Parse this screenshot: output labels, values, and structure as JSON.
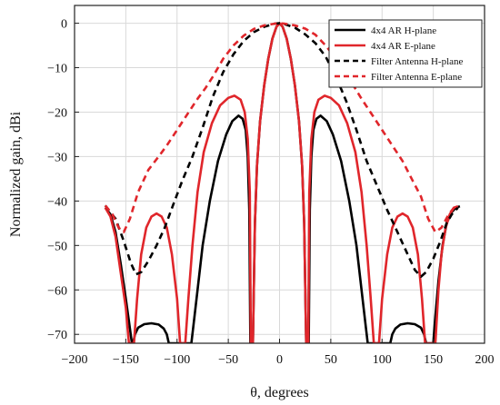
{
  "chart_data": {
    "type": "line",
    "title": "",
    "xlabel": "θ, degrees",
    "ylabel": "Normalized gain, dBi",
    "xlim": [
      -200,
      200
    ],
    "ylim": [
      -72,
      4
    ],
    "xticks": [
      -200,
      -150,
      -100,
      -50,
      0,
      50,
      100,
      150,
      200
    ],
    "yticks": [
      0,
      -10,
      -20,
      -30,
      -40,
      -50,
      -60,
      -70
    ],
    "grid": true,
    "legend_position": "top-right",
    "series": [
      {
        "name": "4x4 AR H-plane",
        "color": "#000000",
        "style": "solid",
        "points": [
          [
            -170,
            -41.5
          ],
          [
            -165,
            -43
          ],
          [
            -160,
            -47
          ],
          [
            -155,
            -54
          ],
          [
            -150,
            -62
          ],
          [
            -147,
            -67
          ],
          [
            -144,
            -72
          ],
          [
            -145,
            -72
          ],
          [
            -143,
            -72
          ],
          [
            -141,
            -70
          ],
          [
            -138,
            -68.5
          ],
          [
            -132,
            -67.7
          ],
          [
            -125,
            -67.5
          ],
          [
            -118,
            -67.8
          ],
          [
            -113,
            -68.7
          ],
          [
            -110,
            -70
          ],
          [
            -108,
            -72
          ],
          [
            -86,
            -72
          ],
          [
            -84,
            -68
          ],
          [
            -80,
            -60
          ],
          [
            -75,
            -50
          ],
          [
            -68,
            -40
          ],
          [
            -60,
            -31
          ],
          [
            -52,
            -25
          ],
          [
            -46,
            -22
          ],
          [
            -40,
            -20.8
          ],
          [
            -36,
            -21.5
          ],
          [
            -33,
            -24
          ],
          [
            -31,
            -30
          ],
          [
            -29.5,
            -42
          ],
          [
            -28.5,
            -72
          ],
          [
            -26,
            -72
          ],
          [
            -24,
            -45
          ],
          [
            -22,
            -32
          ],
          [
            -19,
            -22
          ],
          [
            -15,
            -14
          ],
          [
            -11,
            -8
          ],
          [
            -7,
            -3.5
          ],
          [
            -3,
            -0.8
          ],
          [
            0,
            0
          ],
          [
            3,
            -0.8
          ],
          [
            7,
            -3.5
          ],
          [
            11,
            -8
          ],
          [
            15,
            -14
          ],
          [
            19,
            -22
          ],
          [
            22,
            -32
          ],
          [
            24,
            -45
          ],
          [
            26,
            -72
          ],
          [
            28.5,
            -72
          ],
          [
            29.5,
            -42
          ],
          [
            31,
            -30
          ],
          [
            33,
            -24
          ],
          [
            36,
            -21.5
          ],
          [
            40,
            -20.8
          ],
          [
            46,
            -22
          ],
          [
            52,
            -25
          ],
          [
            60,
            -31
          ],
          [
            68,
            -40
          ],
          [
            75,
            -50
          ],
          [
            80,
            -60
          ],
          [
            84,
            -68
          ],
          [
            86,
            -72
          ],
          [
            108,
            -72
          ],
          [
            110,
            -70
          ],
          [
            113,
            -68.7
          ],
          [
            118,
            -67.8
          ],
          [
            125,
            -67.5
          ],
          [
            132,
            -67.7
          ],
          [
            138,
            -68.5
          ],
          [
            141,
            -70
          ],
          [
            143,
            -72
          ],
          [
            150,
            -72
          ],
          [
            152,
            -66
          ],
          [
            155,
            -58
          ],
          [
            159,
            -50
          ],
          [
            163,
            -45
          ],
          [
            168,
            -42.5
          ],
          [
            172,
            -41.5
          ],
          [
            176,
            -41.2
          ]
        ]
      },
      {
        "name": "4x4 AR E-plane",
        "color": "#e0262b",
        "style": "solid",
        "points": [
          [
            -170,
            -41.5
          ],
          [
            -165,
            -43.5
          ],
          [
            -160,
            -48
          ],
          [
            -155,
            -56
          ],
          [
            -150,
            -64
          ],
          [
            -147,
            -72
          ],
          [
            -142,
            -72
          ],
          [
            -139,
            -62
          ],
          [
            -135,
            -52
          ],
          [
            -130,
            -46
          ],
          [
            -125,
            -43.5
          ],
          [
            -120,
            -42.8
          ],
          [
            -115,
            -43.5
          ],
          [
            -110,
            -46
          ],
          [
            -105,
            -52
          ],
          [
            -100,
            -62
          ],
          [
            -97,
            -72
          ],
          [
            -92,
            -72
          ],
          [
            -89,
            -62
          ],
          [
            -85,
            -50
          ],
          [
            -80,
            -38
          ],
          [
            -74,
            -29
          ],
          [
            -66,
            -22.5
          ],
          [
            -58,
            -18.5
          ],
          [
            -50,
            -16.8
          ],
          [
            -44,
            -16.3
          ],
          [
            -38,
            -17.2
          ],
          [
            -34,
            -20
          ],
          [
            -31,
            -26
          ],
          [
            -29,
            -38
          ],
          [
            -28,
            -72
          ],
          [
            -26,
            -72
          ],
          [
            -24,
            -45
          ],
          [
            -22,
            -32
          ],
          [
            -19,
            -22
          ],
          [
            -15,
            -14
          ],
          [
            -11,
            -8
          ],
          [
            -7,
            -3.5
          ],
          [
            -3,
            -0.8
          ],
          [
            0,
            0
          ],
          [
            3,
            -0.8
          ],
          [
            7,
            -3.5
          ],
          [
            11,
            -8
          ],
          [
            15,
            -14
          ],
          [
            19,
            -22
          ],
          [
            22,
            -32
          ],
          [
            24,
            -45
          ],
          [
            26,
            -72
          ],
          [
            28,
            -72
          ],
          [
            29,
            -38
          ],
          [
            31,
            -26
          ],
          [
            34,
            -20
          ],
          [
            38,
            -17.2
          ],
          [
            44,
            -16.3
          ],
          [
            50,
            -16.8
          ],
          [
            58,
            -18.5
          ],
          [
            66,
            -22.5
          ],
          [
            74,
            -29
          ],
          [
            80,
            -38
          ],
          [
            85,
            -50
          ],
          [
            89,
            -62
          ],
          [
            92,
            -72
          ],
          [
            97,
            -72
          ],
          [
            100,
            -62
          ],
          [
            105,
            -52
          ],
          [
            110,
            -46
          ],
          [
            115,
            -43.5
          ],
          [
            120,
            -42.8
          ],
          [
            125,
            -43.5
          ],
          [
            130,
            -46
          ],
          [
            135,
            -52
          ],
          [
            139,
            -62
          ],
          [
            142,
            -72
          ],
          [
            152,
            -72
          ],
          [
            155,
            -60
          ],
          [
            158,
            -52
          ],
          [
            162,
            -46
          ],
          [
            166,
            -43
          ],
          [
            170,
            -41.5
          ],
          [
            174,
            -41.2
          ]
        ]
      },
      {
        "name": "Filter Antenna H-plane",
        "color": "#000000",
        "style": "dashed",
        "points": [
          [
            -170,
            -41
          ],
          [
            -160,
            -44
          ],
          [
            -152,
            -49
          ],
          [
            -145,
            -54
          ],
          [
            -140,
            -56.5
          ],
          [
            -135,
            -56
          ],
          [
            -128,
            -53.5
          ],
          [
            -120,
            -50
          ],
          [
            -112,
            -46
          ],
          [
            -104,
            -41
          ],
          [
            -95,
            -35.5
          ],
          [
            -85,
            -30
          ],
          [
            -75,
            -23.5
          ],
          [
            -65,
            -16.5
          ],
          [
            -55,
            -11
          ],
          [
            -45,
            -7
          ],
          [
            -35,
            -4
          ],
          [
            -25,
            -2
          ],
          [
            -15,
            -0.8
          ],
          [
            -5,
            -0.1
          ],
          [
            0,
            0
          ],
          [
            5,
            -0.2
          ],
          [
            15,
            -1
          ],
          [
            25,
            -2.5
          ],
          [
            35,
            -4.5
          ],
          [
            45,
            -7.5
          ],
          [
            55,
            -12
          ],
          [
            65,
            -17.5
          ],
          [
            75,
            -24
          ],
          [
            85,
            -31
          ],
          [
            95,
            -36.5
          ],
          [
            105,
            -42
          ],
          [
            115,
            -47
          ],
          [
            125,
            -52
          ],
          [
            132,
            -55.5
          ],
          [
            138,
            -57
          ],
          [
            143,
            -56
          ],
          [
            150,
            -53
          ],
          [
            157,
            -49
          ],
          [
            163,
            -45
          ],
          [
            168,
            -43
          ],
          [
            174,
            -41.5
          ]
        ]
      },
      {
        "name": "Filter Antenna E-plane",
        "color": "#e0262b",
        "style": "dashed",
        "points": [
          [
            -170,
            -41
          ],
          [
            -163,
            -43
          ],
          [
            -157,
            -46
          ],
          [
            -152,
            -47
          ],
          [
            -146,
            -44
          ],
          [
            -138,
            -38
          ],
          [
            -128,
            -33
          ],
          [
            -118,
            -30
          ],
          [
            -110,
            -27.5
          ],
          [
            -100,
            -24
          ],
          [
            -90,
            -20.5
          ],
          [
            -80,
            -17
          ],
          [
            -72,
            -14.5
          ],
          [
            -65,
            -12
          ],
          [
            -55,
            -8
          ],
          [
            -45,
            -5
          ],
          [
            -35,
            -2.8
          ],
          [
            -25,
            -1.3
          ],
          [
            -15,
            -0.5
          ],
          [
            -5,
            -0.1
          ],
          [
            0,
            0
          ],
          [
            5,
            -0.1
          ],
          [
            15,
            -0.5
          ],
          [
            25,
            -1.2
          ],
          [
            35,
            -2.6
          ],
          [
            45,
            -5
          ],
          [
            55,
            -8
          ],
          [
            65,
            -12
          ],
          [
            72,
            -14
          ],
          [
            80,
            -17
          ],
          [
            90,
            -20.5
          ],
          [
            100,
            -24
          ],
          [
            110,
            -27.5
          ],
          [
            120,
            -31
          ],
          [
            130,
            -35.5
          ],
          [
            138,
            -39
          ],
          [
            145,
            -44
          ],
          [
            152,
            -47
          ],
          [
            158,
            -46
          ],
          [
            165,
            -43
          ],
          [
            172,
            -41
          ]
        ]
      }
    ]
  }
}
